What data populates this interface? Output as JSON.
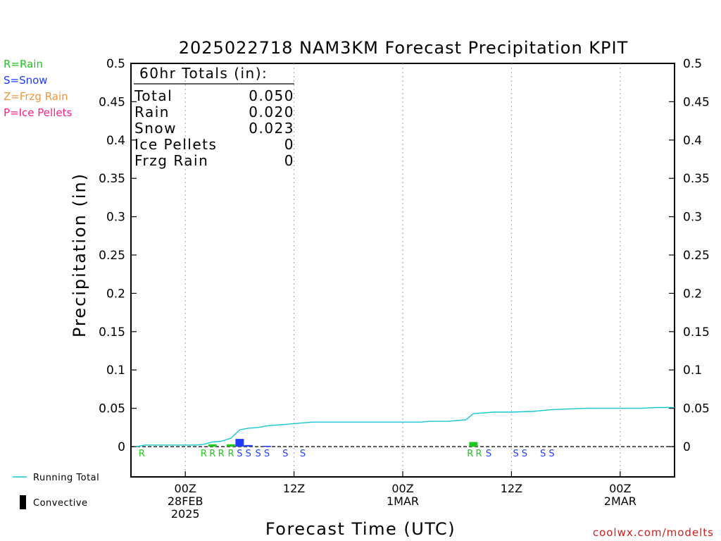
{
  "colors": {
    "rain": "#1ec81e",
    "snow": "#1e3cff",
    "frzg_rain": "#f0963c",
    "ice_pellets": "#ff1e8c",
    "running_total": "#14c8d2",
    "convective": "#000000",
    "footer": "#d21e1e",
    "grid": "#a0a0a0"
  },
  "ptype_legend": [
    {
      "text": "R=Rain",
      "color_key": "rain"
    },
    {
      "text": "S=Snow",
      "color_key": "snow"
    },
    {
      "text": "Z=Frzg Rain",
      "color_key": "frzg_rain"
    },
    {
      "text": "P=Ice Pellets",
      "color_key": "ice_pellets"
    }
  ],
  "bottom_legend": {
    "running_total": "Running Total",
    "convective": "Convective"
  },
  "footer": "coolwx.com/modelts",
  "chart_data": {
    "type": "bar",
    "title": "2025022718 NAM3KM Forecast Precipitation KPIT",
    "xlabel": "Forecast Time (UTC)",
    "ylabel": "Precipitation (in)",
    "ylim": [
      0,
      0.5
    ],
    "xlim_hours": [
      -5,
      45
    ],
    "grid": "vertical dotted",
    "yticks": [
      "0",
      "0.05",
      "0.1",
      "0.15",
      "0.2",
      "0.25",
      "0.3",
      "0.35",
      "0.4",
      "0.45",
      "0.5"
    ],
    "xticks": [
      {
        "hour": 0,
        "lines": [
          "00Z",
          "28FEB",
          "2025"
        ]
      },
      {
        "hour": 10,
        "lines": [
          "12Z"
        ]
      },
      {
        "hour": 20,
        "lines": [
          "00Z",
          "1MAR"
        ]
      },
      {
        "hour": 30,
        "lines": [
          "12Z"
        ]
      },
      {
        "hour": 40,
        "lines": [
          "00Z",
          "2MAR"
        ]
      }
    ],
    "totals": {
      "header": "60hr Totals (in):",
      "rows": [
        {
          "label": "Total",
          "value": "0.050"
        },
        {
          "label": "Rain",
          "value": "0.020"
        },
        {
          "label": "Snow",
          "value": "0.023"
        },
        {
          "label": "Ice Pellets",
          "value": "0"
        },
        {
          "label": "Frzg Rain",
          "value": "0"
        }
      ]
    },
    "bars": [
      {
        "hour": 2.5,
        "value": 0.003,
        "ptype": "rain"
      },
      {
        "hour": 4.2,
        "value": 0.003,
        "ptype": "rain"
      },
      {
        "hour": 5.0,
        "value": 0.01,
        "ptype": "snow"
      },
      {
        "hour": 5.8,
        "value": 0.002,
        "ptype": "snow"
      },
      {
        "hour": 7.5,
        "value": 0.001,
        "ptype": "snow"
      },
      {
        "hour": 26.5,
        "value": 0.006,
        "ptype": "rain"
      }
    ],
    "running_total": {
      "hours": [
        -4.5,
        -3.7,
        1.0,
        1.7,
        2.5,
        3.3,
        4.2,
        5.0,
        5.8,
        6.7,
        7.5,
        8.3,
        9.2,
        10.0,
        10.8,
        11.7,
        12.5,
        20.0,
        21.7,
        22.5,
        24.2,
        25.0,
        25.8,
        26.5,
        27.5,
        28.3,
        30.0,
        32.0,
        33.5,
        35.0,
        37.0,
        40.0,
        42.0,
        43.3,
        45.0
      ],
      "values": [
        0.0,
        0.002,
        0.002,
        0.003,
        0.006,
        0.007,
        0.011,
        0.022,
        0.024,
        0.025,
        0.027,
        0.028,
        0.029,
        0.03,
        0.031,
        0.032,
        0.032,
        0.032,
        0.032,
        0.033,
        0.033,
        0.034,
        0.035,
        0.043,
        0.044,
        0.045,
        0.045,
        0.046,
        0.048,
        0.049,
        0.05,
        0.05,
        0.05,
        0.051,
        0.051
      ]
    },
    "ptype_markers": [
      {
        "hour": -4.0,
        "letter": "R",
        "ptype": "rain"
      },
      {
        "hour": 1.7,
        "letter": "R",
        "ptype": "rain"
      },
      {
        "hour": 2.5,
        "letter": "R",
        "ptype": "rain"
      },
      {
        "hour": 3.3,
        "letter": "R",
        "ptype": "rain"
      },
      {
        "hour": 4.2,
        "letter": "R",
        "ptype": "rain"
      },
      {
        "hour": 5.0,
        "letter": "S",
        "ptype": "snow"
      },
      {
        "hour": 5.8,
        "letter": "S",
        "ptype": "snow"
      },
      {
        "hour": 6.7,
        "letter": "S",
        "ptype": "snow"
      },
      {
        "hour": 7.5,
        "letter": "S",
        "ptype": "snow"
      },
      {
        "hour": 9.2,
        "letter": "S",
        "ptype": "snow"
      },
      {
        "hour": 10.8,
        "letter": "S",
        "ptype": "snow"
      },
      {
        "hour": 26.2,
        "letter": "R",
        "ptype": "rain"
      },
      {
        "hour": 27.0,
        "letter": "R",
        "ptype": "rain"
      },
      {
        "hour": 27.9,
        "letter": "S",
        "ptype": "snow"
      },
      {
        "hour": 30.4,
        "letter": "S",
        "ptype": "snow"
      },
      {
        "hour": 31.2,
        "letter": "S",
        "ptype": "snow"
      },
      {
        "hour": 32.9,
        "letter": "S",
        "ptype": "snow"
      },
      {
        "hour": 33.7,
        "letter": "S",
        "ptype": "snow"
      }
    ]
  }
}
